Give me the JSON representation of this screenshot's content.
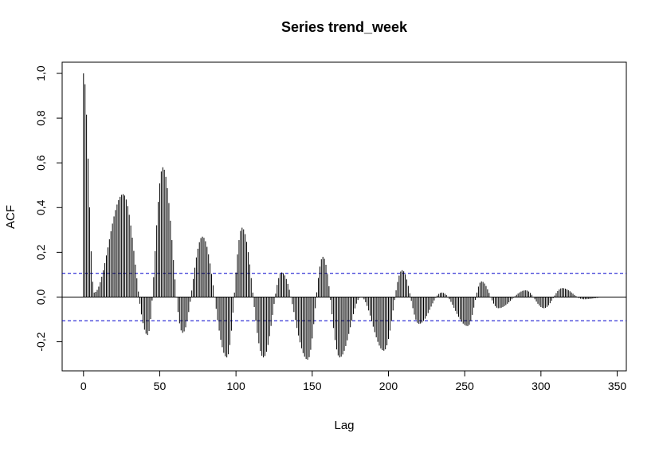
{
  "chart_data": {
    "type": "bar",
    "title": "Series  trend_week",
    "xlabel": "Lag",
    "ylabel": "ACF",
    "xlim": [
      -14,
      356
    ],
    "ylim": [
      -0.33,
      1.05
    ],
    "x_ticks": [
      0,
      50,
      100,
      150,
      200,
      250,
      300,
      350
    ],
    "x_tick_labels": [
      "0",
      "50",
      "100",
      "150",
      "200",
      "250",
      "300",
      "350"
    ],
    "y_ticks": [
      -0.2,
      0.0,
      0.2,
      0.4,
      0.6,
      0.8,
      1.0
    ],
    "y_tick_labels": [
      "-0,2",
      "0,0",
      "0,2",
      "0,4",
      "0,6",
      "0,8",
      "1,0"
    ],
    "confidence_bound": 0.106,
    "zero_line": 0,
    "grid": false,
    "legend": "none",
    "colors": {
      "bars": "#000000",
      "confidence": "#0000cc",
      "zero_line": "#000000"
    },
    "peaks": [
      {
        "lag": 0,
        "acf": 1.0
      },
      {
        "lag": 7,
        "acf": 0.02
      },
      {
        "lag": 26,
        "acf": 0.46
      },
      {
        "lag": 42,
        "acf": -0.17
      },
      {
        "lag": 52,
        "acf": 0.58
      },
      {
        "lag": 65,
        "acf": -0.16
      },
      {
        "lag": 78,
        "acf": 0.27
      },
      {
        "lag": 94,
        "acf": -0.27
      },
      {
        "lag": 104,
        "acf": 0.31
      },
      {
        "lag": 118,
        "acf": -0.27
      },
      {
        "lag": 130,
        "acf": 0.11
      },
      {
        "lag": 147,
        "acf": -0.28
      },
      {
        "lag": 157,
        "acf": 0.18
      },
      {
        "lag": 168,
        "acf": -0.27
      },
      {
        "lag": 182,
        "acf": 0.0
      },
      {
        "lag": 197,
        "acf": -0.24
      },
      {
        "lag": 209,
        "acf": 0.12
      },
      {
        "lag": 220,
        "acf": -0.12
      },
      {
        "lag": 235,
        "acf": 0.02
      },
      {
        "lag": 252,
        "acf": -0.13
      },
      {
        "lag": 261,
        "acf": 0.07
      },
      {
        "lag": 272,
        "acf": -0.05
      },
      {
        "lag": 290,
        "acf": 0.03
      },
      {
        "lag": 302,
        "acf": -0.05
      },
      {
        "lag": 314,
        "acf": 0.04
      },
      {
        "lag": 328,
        "acf": -0.01
      },
      {
        "lag": 343,
        "acf": 0.0
      }
    ]
  }
}
